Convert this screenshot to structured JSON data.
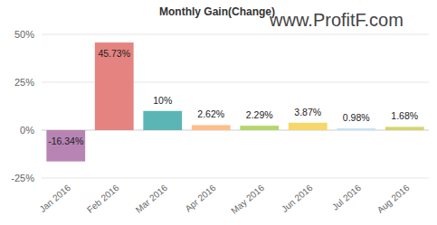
{
  "chart_data": {
    "type": "bar",
    "title": "Monthly Gain(Change)",
    "annotations": [
      "www.ProfitF.com"
    ],
    "categories": [
      "Jan 2016",
      "Feb 2016",
      "Mar 2016",
      "Apr 2016",
      "May 2016",
      "Jun 2016",
      "Jul 2016",
      "Aug 2016"
    ],
    "values": [
      -16.34,
      45.73,
      10,
      2.62,
      2.29,
      3.87,
      0.98,
      1.68
    ],
    "value_labels": [
      "-16.34%",
      "45.73%",
      "10%",
      "2.62%",
      "2.29%",
      "3.87%",
      "0.98%",
      "1.68%"
    ],
    "colors": [
      "#b784b4",
      "#e4837f",
      "#5cb5b5",
      "#fdbf8a",
      "#b5d66b",
      "#f5d76b",
      "#c9e3f5",
      "#d4d46b"
    ],
    "ylim": [
      -25,
      50
    ],
    "yticks": [
      {
        "value": -25,
        "label": "-25%"
      },
      {
        "value": 0,
        "label": "0%"
      },
      {
        "value": 25,
        "label": "25%"
      },
      {
        "value": 50,
        "label": "50%"
      }
    ],
    "grid": true,
    "data_labels": true
  }
}
